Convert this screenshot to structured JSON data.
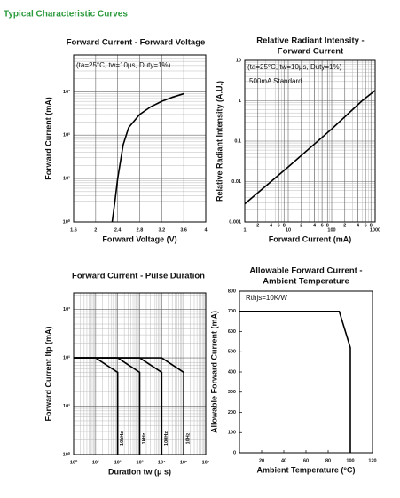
{
  "page_title": "Typical Characteristic Curves",
  "chart_data": [
    {
      "type": "line",
      "title": "Forward Current - Forward Voltage",
      "x_label": "Forward Voltage (V)",
      "y_label": "Forward Current (mA)",
      "annotations": [
        "(ta=25°C, tw=10μs, Duty=1%)"
      ],
      "xlim": [
        1.6,
        4.0
      ],
      "xticks": [
        1.6,
        2.0,
        2.4,
        2.8,
        3.2,
        3.6,
        4.0
      ],
      "ylim": [
        1,
        7000
      ],
      "ylog": true,
      "yticks": [
        {
          "value": 1,
          "label": "10⁰"
        },
        {
          "value": 10,
          "label": "10¹"
        },
        {
          "value": 100,
          "label": "10²"
        },
        {
          "value": 1000,
          "label": "10³"
        }
      ],
      "grid": true,
      "color": "#000000",
      "series": [
        {
          "x": [
            2.3,
            2.35,
            2.4,
            2.5,
            2.6,
            2.8,
            3.0,
            3.2,
            3.4,
            3.6
          ],
          "values": [
            1,
            3,
            10,
            60,
            150,
            300,
            450,
            600,
            750,
            900
          ]
        }
      ]
    },
    {
      "type": "line",
      "title": [
        "Relative Radiant Intensity -",
        "Forward Current"
      ],
      "x_label": "Forward Current (mA)",
      "y_label": "Relative Radiant Intensity (A.U.)",
      "annotations": [
        "(ta=25°C, tw=10μs, Duty=1%)",
        "500mA Standard"
      ],
      "xlim": [
        1,
        1000
      ],
      "xlog": true,
      "xticks": [
        1,
        {
          "value": 2,
          "label": "2"
        },
        {
          "value": 4,
          "label": "4"
        },
        {
          "value": 6,
          "label": "6"
        },
        {
          "value": 8,
          "label": "8"
        },
        10,
        {
          "value": 20,
          "label": "2"
        },
        {
          "value": 40,
          "label": "4"
        },
        {
          "value": 60,
          "label": "6"
        },
        {
          "value": 80,
          "label": "8"
        },
        100,
        {
          "value": 200,
          "label": "2"
        },
        {
          "value": 400,
          "label": "4"
        },
        {
          "value": 600,
          "label": "6"
        },
        {
          "value": 800,
          "label": "8"
        },
        1000
      ],
      "ylim": [
        0.001,
        10
      ],
      "ylog": true,
      "yticks": [
        0.001,
        0.01,
        0.1,
        1,
        10
      ],
      "grid": true,
      "color": "#000000",
      "series": [
        {
          "x": [
            1,
            10,
            100,
            500,
            1000
          ],
          "values": [
            0.0028,
            0.023,
            0.2,
            1.0,
            1.8
          ]
        }
      ]
    },
    {
      "type": "line",
      "title": "Forward Current - Pulse Duration",
      "x_label": "Duration tw (μ s)",
      "y_label": "Forward Current Ifp (mA)",
      "xlim": [
        1,
        1000000
      ],
      "xlog": true,
      "xticks": [
        {
          "value": 1,
          "label": "10⁰"
        },
        {
          "value": 10,
          "label": "10¹"
        },
        {
          "value": 100,
          "label": "10²"
        },
        {
          "value": 1000,
          "label": "10³"
        },
        {
          "value": 10000,
          "label": "10⁴"
        },
        {
          "value": 100000,
          "label": "10⁵"
        },
        {
          "value": 1000000,
          "label": "10⁶"
        }
      ],
      "ylim": [
        1,
        2200
      ],
      "ylog": true,
      "yticks": [
        {
          "value": 1,
          "label": "10⁰"
        },
        {
          "value": 10,
          "label": "10¹"
        },
        {
          "value": 100,
          "label": "10²"
        },
        {
          "value": 1000,
          "label": "10³"
        }
      ],
      "grid": true,
      "color": "#000000",
      "series": [
        {
          "name": "10kHz",
          "x": [
            1,
            10,
            100,
            100
          ],
          "values": [
            100,
            100,
            50,
            1
          ]
        },
        {
          "name": "1kHz",
          "x": [
            1,
            100,
            1000,
            1000
          ],
          "values": [
            100,
            100,
            50,
            1
          ]
        },
        {
          "name": "100Hz",
          "x": [
            1,
            1000,
            10000,
            10000
          ],
          "values": [
            100,
            100,
            50,
            1
          ]
        },
        {
          "name": "10Hz",
          "x": [
            1,
            10000,
            100000,
            100000
          ],
          "values": [
            100,
            100,
            50,
            1
          ]
        }
      ]
    },
    {
      "type": "line",
      "title": [
        "Allowable Forward Current -",
        "Ambient Temperature"
      ],
      "x_label": "Ambient Temperature (°C)",
      "y_label": "Allowable Forward Current (mA)",
      "annotations": [
        "Rthjs=10K/W"
      ],
      "xlim": [
        0,
        120
      ],
      "xticks": [
        20,
        40,
        60,
        80,
        100,
        120
      ],
      "ylim": [
        0,
        800
      ],
      "yticks": [
        0,
        100,
        200,
        300,
        400,
        500,
        600,
        700,
        800
      ],
      "grid": false,
      "color": "#000000",
      "series": [
        {
          "x": [
            0,
            90,
            100,
            100
          ],
          "values": [
            700,
            700,
            520,
            0
          ]
        }
      ]
    }
  ]
}
